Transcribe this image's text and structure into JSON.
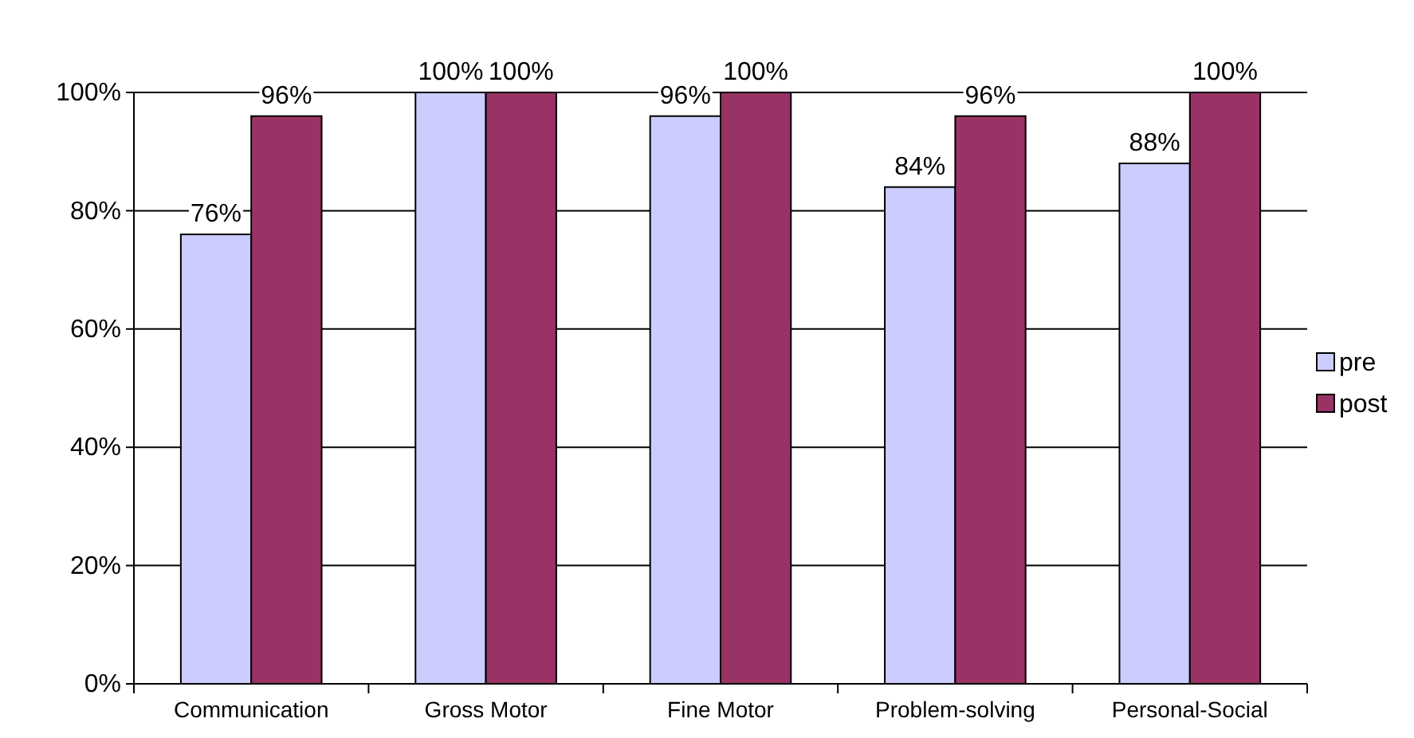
{
  "chart_data": {
    "type": "bar",
    "categories": [
      "Communication",
      "Gross Motor",
      "Fine Motor",
      "Problem-solving",
      "Personal-Social"
    ],
    "series": [
      {
        "name": "pre",
        "color": "#ccccff",
        "values": [
          76,
          100,
          96,
          84,
          88
        ],
        "value_labels": [
          "76%",
          "100%",
          "96%",
          "84%",
          "88%"
        ]
      },
      {
        "name": "post",
        "color": "#993366",
        "values": [
          96,
          100,
          100,
          96,
          100
        ],
        "value_labels": [
          "96%",
          "100%",
          "100%",
          "96%",
          "100%"
        ]
      }
    ],
    "ylim": [
      0,
      100
    ],
    "yticks": [
      {
        "value": 0,
        "label": "0%"
      },
      {
        "value": 20,
        "label": "20%"
      },
      {
        "value": 40,
        "label": "40%"
      },
      {
        "value": 60,
        "label": "60%"
      },
      {
        "value": 80,
        "label": "80%"
      },
      {
        "value": 100,
        "label": "100%"
      }
    ],
    "grid": "y",
    "legend": "right"
  }
}
